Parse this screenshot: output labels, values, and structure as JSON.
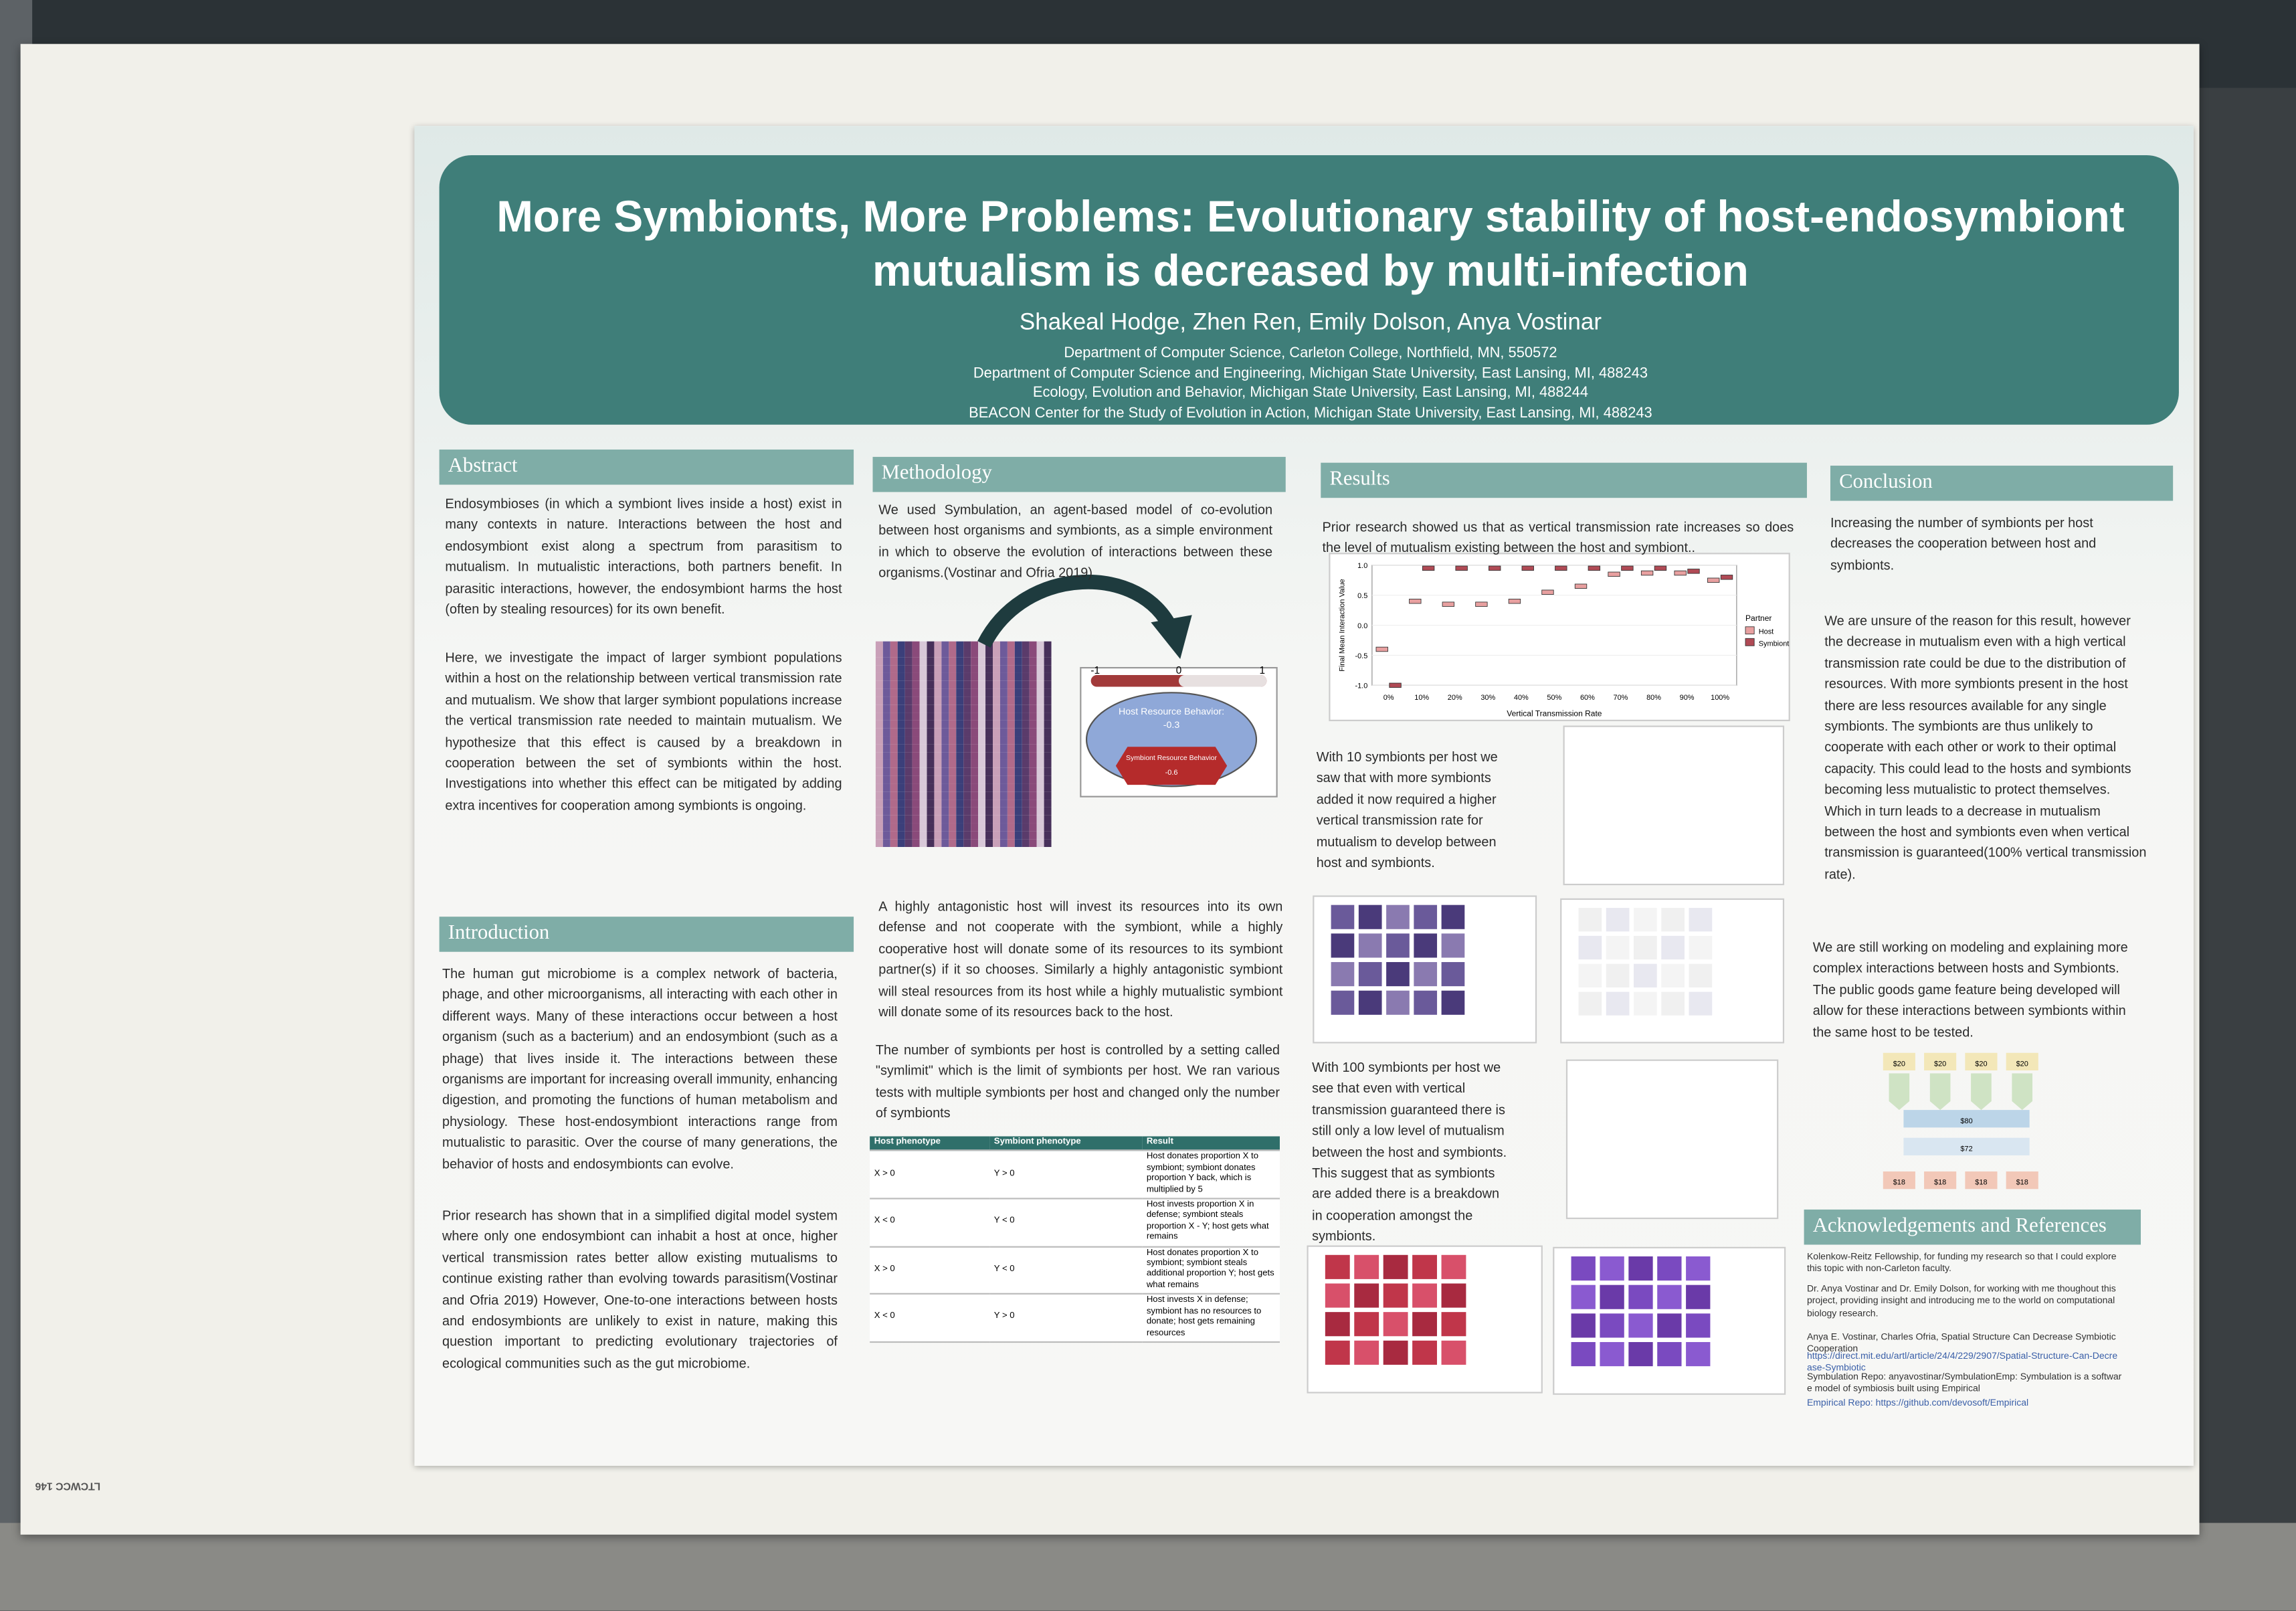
{
  "header": {
    "title": "More Symbionts, More Problems: Evolutionary stability of host-endosymbiont mutualism is decreased by multi-infection",
    "authors": "Shakeal Hodge, Zhen Ren, Emily Dolson, Anya Vostinar",
    "affiliations": [
      "Department of Computer Science, Carleton College, Northfield, MN, 550572",
      "Department of Computer Science and Engineering, Michigan State University, East Lansing, MI, 488243",
      "Ecology, Evolution and Behavior, Michigan State University, East Lansing, MI, 488244",
      "BEACON Center for the Study of Evolution in Action, Michigan State University, East Lansing, MI, 488243"
    ]
  },
  "board_label": "LTCWCC 146",
  "abstract": {
    "heading": "Abstract",
    "paragraphs": [
      "Endosymbioses (in which a symbiont lives inside a host) exist in many contexts in nature. Interactions between the host and endosymbiont exist along a spectrum from parasitism to mutualism. In mutualistic interactions, both partners benefit. In parasitic interactions, however, the endosymbiont harms the host (often by stealing resources) for its own benefit.",
      "Here, we investigate the impact of larger symbiont populations within a host on the relationship between vertical transmission rate and mutualism. We show that larger symbiont populations increase the vertical transmission rate needed to maintain mutualism. We hypothesize that this effect is caused by a breakdown in cooperation between the set of symbionts within the host. Investigations into whether this effect can be mitigated by adding extra incentives for cooperation among symbionts is ongoing."
    ]
  },
  "introduction": {
    "heading": "Introduction",
    "paragraphs": [
      "The human gut microbiome is a complex network of bacteria, phage, and other microorganisms, all interacting with each other in different ways. Many of these interactions occur between a host organism (such as a bacterium) and an endosymbiont (such as a phage) that lives inside it. The interactions between these organisms are important for increasing overall immunity, enhancing digestion, and promoting the functions of human metabolism and physiology. These host-endosymbiont interactions range from mutualistic to parasitic. Over the course of many generations, the behavior of hosts and endosymbionts can evolve.",
      "Prior research has shown that in a simplified digital model system where only one endosymbiont can inhabit a host at once, higher vertical transmission rates better allow existing mutualisms to continue existing rather than evolving towards parasitism(Vostinar and Ofria 2019) However, One-to-one interactions between hosts and endosymbionts are unlikely to exist in nature, making this question important to predicting evolutionary trajectories of ecological communities such as the gut microbiome."
    ]
  },
  "methodology": {
    "heading": "Methodology",
    "paragraphs": [
      "We used Symbulation, an agent-based model of co-evolution between host organisms and symbionts, as a simple environment in which to observe the evolution of interactions between these organisms.(Vostinar and Ofria 2019)",
      "A highly antagonistic host will invest its resources into its own defense and not cooperate with the symbiont, while a highly cooperative host will donate some of its resources to its symbiont partner(s) if it so chooses. Similarly a highly antagonistic symbiont will steal resources from its host while a highly mutualistic symbiont will donate some of its resources back to the host.",
      "The number of symbionts per host is controlled by a setting called \"symlimit\" which is the limit of symbionts per host. We ran various tests with multiple symbionts per host and changed only the number of symbionts"
    ],
    "figure": {
      "scale": [
        "-1",
        "0",
        "1"
      ],
      "host_label": "Host Resource Behavior:",
      "host_value": "-0.3",
      "symbiont_label": "Symbiont Resource Behavior",
      "symbiont_value": "-0.6"
    },
    "table": {
      "headers": [
        "Host phenotype",
        "Symbiont phenotype",
        "Result"
      ],
      "rows": [
        [
          "X > 0",
          "Y > 0",
          "Host donates proportion X to symbiont; symbiont donates proportion Y back, which is multiplied by 5"
        ],
        [
          "X < 0",
          "Y < 0",
          "Host invests proportion X in defense; symbiont steals proportion X - Y; host gets what remains"
        ],
        [
          "X > 0",
          "Y < 0",
          "Host donates proportion X to symbiont; symbiont steals additional proportion Y; host gets what remains"
        ],
        [
          "X < 0",
          "Y > 0",
          "Host invests X in defense; symbiont has no resources to donate; host gets remaining resources"
        ]
      ]
    }
  },
  "results": {
    "heading": "Results",
    "paragraphs": [
      "Prior research showed us that as vertical transmission rate increases so does the level of mutualism existing between the host and symbiont..",
      "With 10 symbionts per host we saw that with more symbionts added it now required a higher vertical transmission rate for mutualism to develop between host and symbionts.",
      "With 100 symbionts per host we see that even with vertical transmission guaranteed there is still only a low level of mutualism between the host and symbionts. This suggest that as symbionts are added there is a breakdown in cooperation amongst the symbionts."
    ]
  },
  "conclusion": {
    "heading": "Conclusion",
    "paragraphs": [
      "Increasing the number of symbionts per host decreases the cooperation  between host and symbionts.",
      "We are unsure of the reason for this result, however the decrease in mutualism even with a high vertical transmission rate could be due to the distribution of resources. With more symbionts present in the host there are less resources available for any single symbionts. The symbionts are thus unlikely to cooperate with each other or work to their optimal capacity. This could lead to the hosts and symbionts becoming less mutualistic to protect themselves. Which in turn leads to a decrease in mutualism  between the host and symbionts even when vertical transmission is guaranteed(100% vertical transmission rate).",
      "We are still working on modeling and explaining more complex interactions between hosts and Symbionts. The public goods game feature being developed will allow for these interactions between symbionts within the same host to be tested."
    ],
    "diagram": {
      "inputs": [
        "$20",
        "$20",
        "$20",
        "$20"
      ],
      "pool": "$80",
      "multiplied": "$72",
      "outputs": [
        "$18",
        "$18",
        "$18",
        "$18"
      ]
    }
  },
  "acknowledgements": {
    "heading": "Acknowledgements and References",
    "lines": [
      "Kolenkow-Reitz Fellowship, for funding my research so that I could explore this topic with non-Carleton faculty.",
      "Dr. Anya Vostinar and Dr. Emily Dolson, for working with me thoughout this project, providing insight and introducing me to the world on computational biology research."
    ],
    "references": [
      "Anya E. Vostinar, Charles Ofria, Spatial Structure Can Decrease Symbiotic Cooperation",
      "https://direct.mit.edu/artl/article/24/4/229/2907/Spatial-Structure-Can-Decrease-Symbiotic",
      "Symbulation Repo: anyavostinar/SymbulationEmp: Symbulation is a software model of symbiosis built using Empirical",
      "Empirical Repo: https://github.com/devosoft/Empirical"
    ]
  },
  "chart_data": {
    "type": "box",
    "ylabel": "Final Mean Interaction Value",
    "xlabel": "Vertical Transmission Rate",
    "legend_title": "Partner",
    "categories": [
      "0%",
      "10%",
      "20%",
      "30%",
      "40%",
      "50%",
      "60%",
      "70%",
      "80%",
      "90%",
      "100%"
    ],
    "series": [
      {
        "name": "Host",
        "color": "#e8a0a0",
        "values": [
          -0.4,
          0.4,
          0.35,
          0.35,
          0.4,
          0.55,
          0.65,
          0.85,
          0.87,
          0.87,
          0.75
        ]
      },
      {
        "name": "Symbiont",
        "color": "#b04a55",
        "values": [
          -1.0,
          0.95,
          0.95,
          0.95,
          0.95,
          0.95,
          0.95,
          0.95,
          0.95,
          0.9,
          0.8
        ]
      }
    ],
    "ylim": [
      -1.0,
      1.0
    ],
    "yticks": [
      {
        "value": -1.0,
        "label": "-1.0"
      },
      {
        "value": -0.5,
        "label": "-0.5"
      },
      {
        "value": 0.0,
        "label": "0.0"
      },
      {
        "value": 0.5,
        "label": "0.5"
      },
      {
        "value": 1.0,
        "label": "1.0"
      }
    ]
  }
}
